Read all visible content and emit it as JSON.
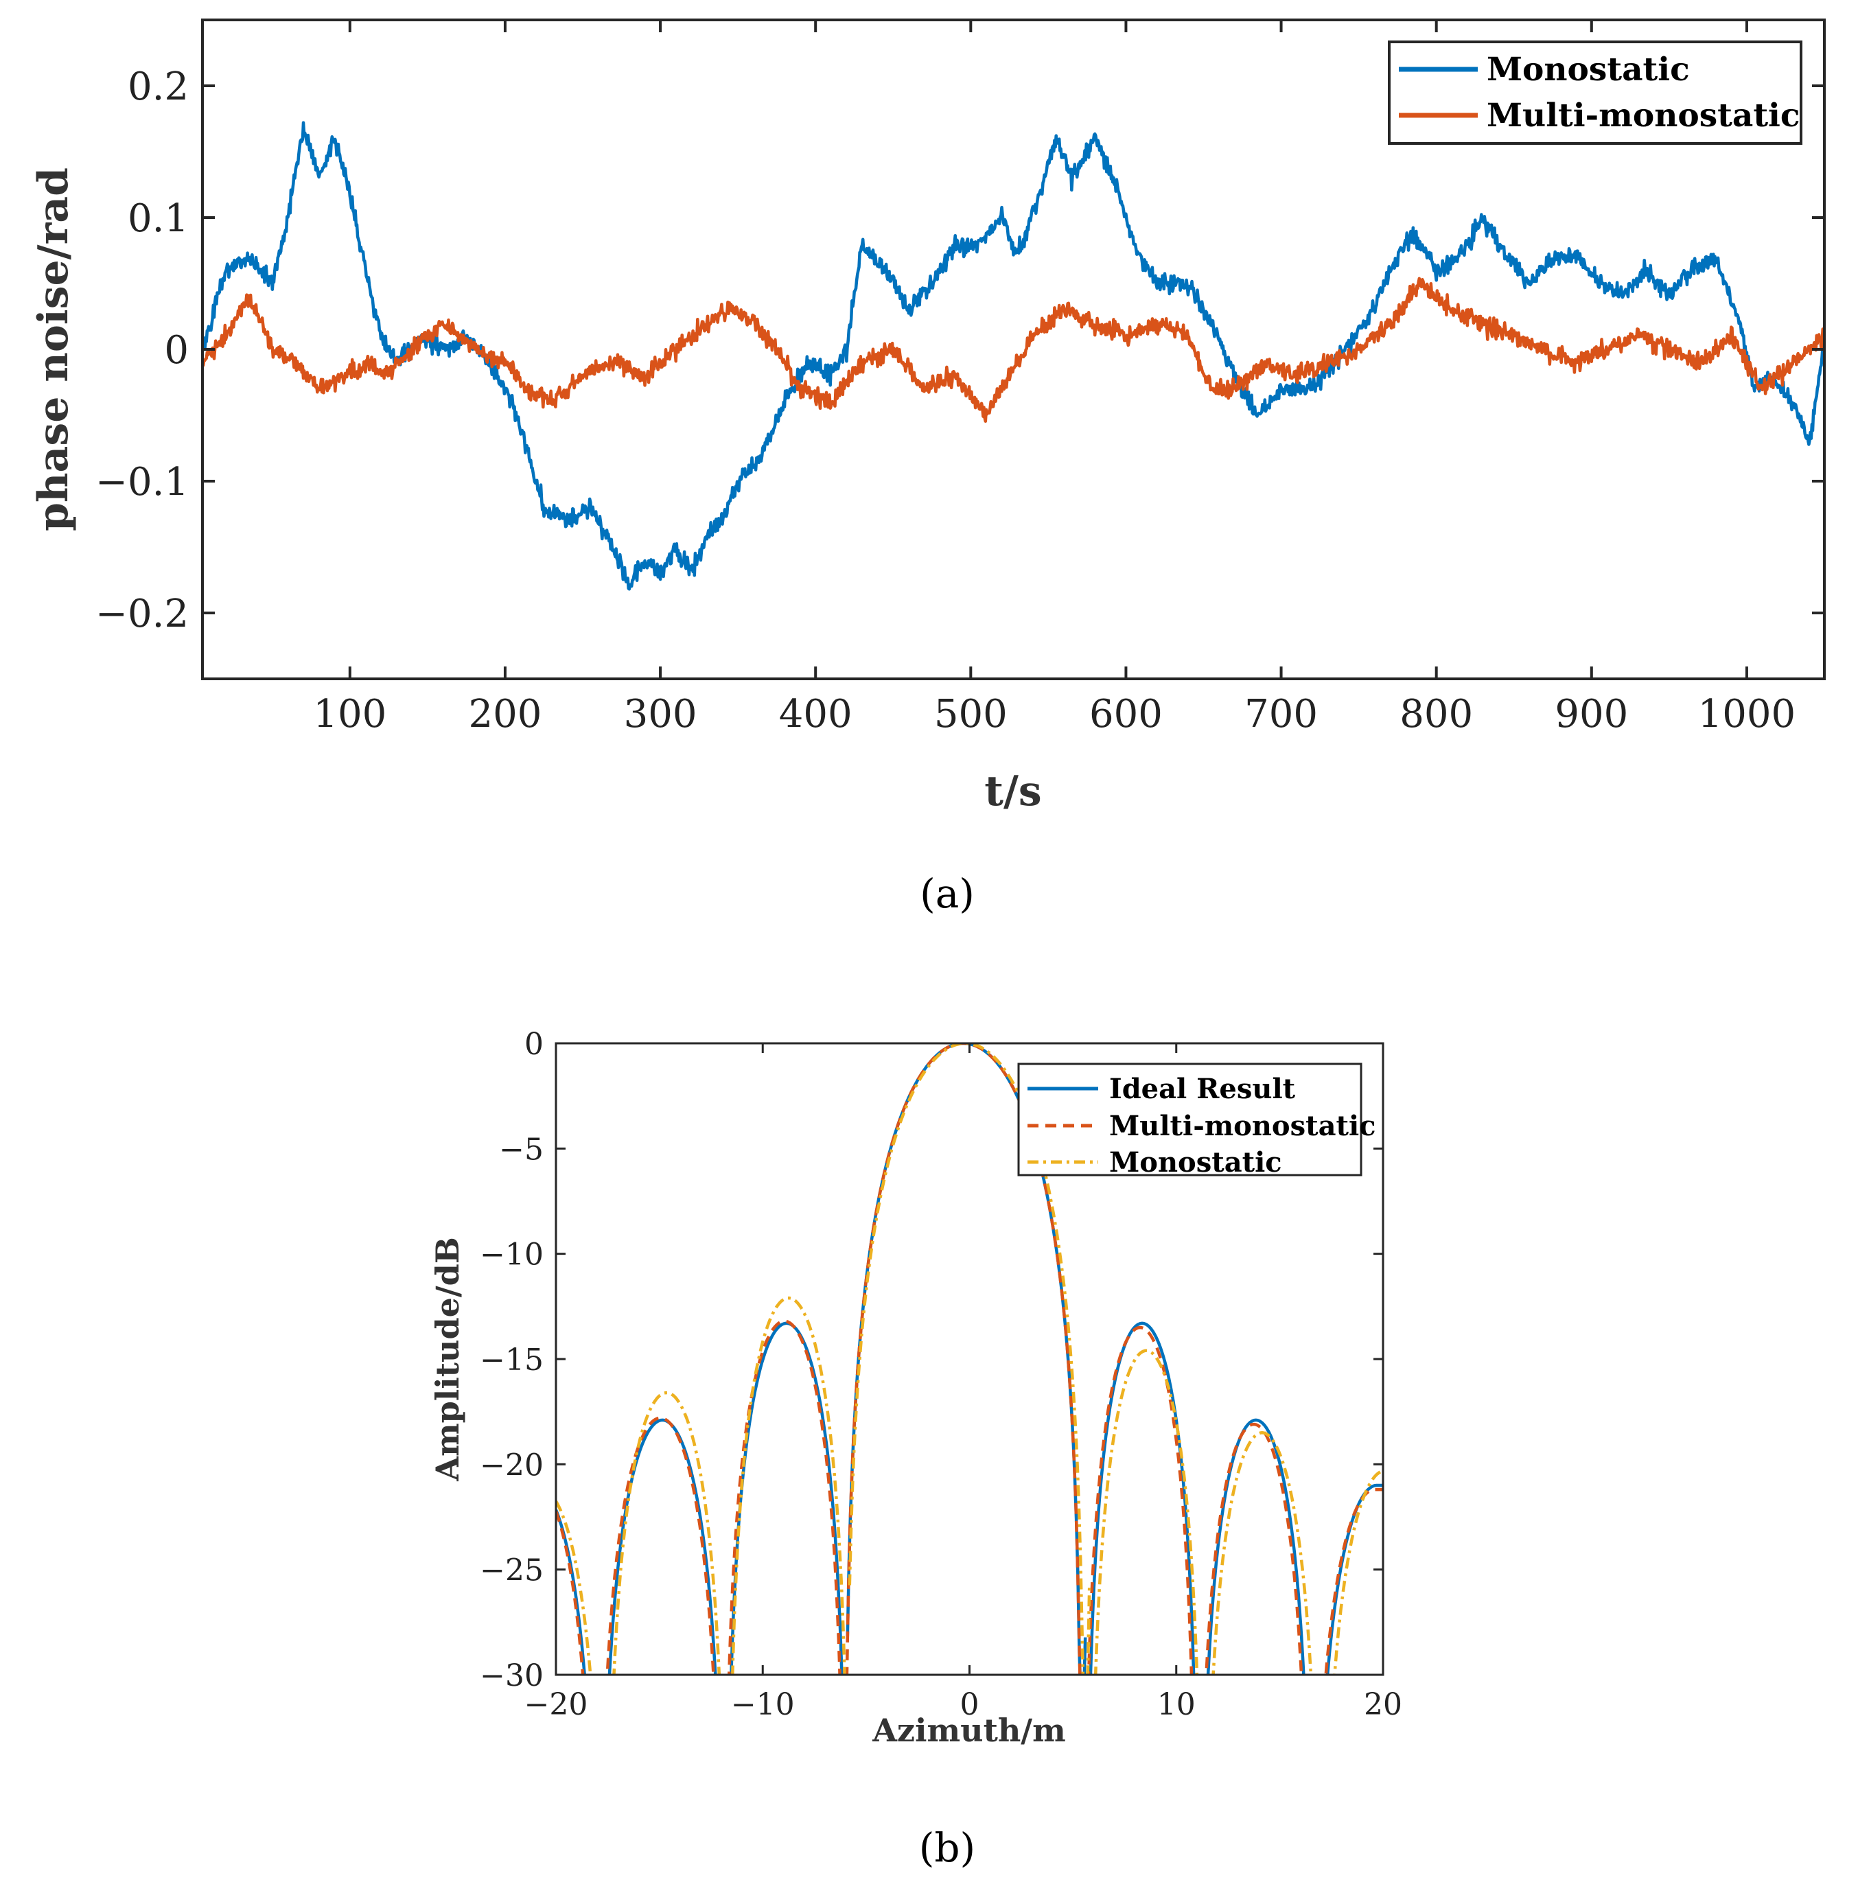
{
  "chart_data": [
    {
      "type": "line",
      "xlabel": "t/s",
      "ylabel": "phase noise/rad",
      "xlim": [
        5,
        1050
      ],
      "ylim": [
        -0.25,
        0.25
      ],
      "xticks": [
        100,
        200,
        300,
        400,
        500,
        600,
        700,
        800,
        900,
        1000
      ],
      "xtick_labels": [
        "100",
        "200",
        "300",
        "400",
        "500",
        "600",
        "700",
        "800",
        "900",
        "1000"
      ],
      "yticks": [
        -0.2,
        -0.1,
        0,
        0.1,
        0.2
      ],
      "ytick_labels": [
        "−0.2",
        "−0.1",
        "0",
        "0.1",
        "0.2"
      ],
      "caption": "(a)",
      "legend_position": "top-right",
      "series": [
        {
          "name": "Monostatic",
          "color": "#0072BD",
          "style": "solid",
          "x": [
            5,
            20,
            35,
            50,
            60,
            70,
            80,
            90,
            100,
            110,
            120,
            130,
            145,
            160,
            175,
            190,
            205,
            215,
            225,
            240,
            255,
            270,
            280,
            290,
            300,
            310,
            320,
            330,
            340,
            350,
            365,
            380,
            395,
            410,
            420,
            430,
            445,
            460,
            475,
            490,
            505,
            520,
            530,
            545,
            555,
            565,
            580,
            595,
            605,
            620,
            640,
            655,
            670,
            685,
            700,
            720,
            740,
            755,
            770,
            785,
            800,
            815,
            830,
            845,
            860,
            875,
            890,
            905,
            920,
            935,
            950,
            965,
            980,
            995,
            1005,
            1015,
            1030,
            1040,
            1050
          ],
          "values": [
            0.0,
            0.06,
            0.07,
            0.05,
            0.1,
            0.17,
            0.13,
            0.16,
            0.12,
            0.06,
            0.01,
            -0.01,
            0.01,
            0.0,
            0.01,
            -0.01,
            -0.04,
            -0.08,
            -0.12,
            -0.13,
            -0.12,
            -0.15,
            -0.18,
            -0.16,
            -0.17,
            -0.15,
            -0.17,
            -0.14,
            -0.13,
            -0.1,
            -0.08,
            -0.04,
            -0.01,
            -0.02,
            0.0,
            0.08,
            0.06,
            0.03,
            0.05,
            0.08,
            0.08,
            0.1,
            0.07,
            0.12,
            0.16,
            0.13,
            0.16,
            0.12,
            0.08,
            0.05,
            0.05,
            0.02,
            -0.02,
            -0.05,
            -0.03,
            -0.03,
            0.0,
            0.02,
            0.06,
            0.09,
            0.06,
            0.07,
            0.1,
            0.07,
            0.05,
            0.07,
            0.07,
            0.05,
            0.04,
            0.06,
            0.04,
            0.06,
            0.07,
            0.02,
            -0.03,
            -0.02,
            -0.04,
            -0.07,
            0.0
          ]
        },
        {
          "name": "Multi-monostatic",
          "color": "#D95319",
          "style": "solid",
          "x": [
            5,
            20,
            35,
            50,
            65,
            80,
            95,
            110,
            125,
            140,
            160,
            180,
            200,
            215,
            230,
            250,
            270,
            290,
            310,
            330,
            345,
            360,
            375,
            390,
            410,
            430,
            450,
            470,
            490,
            510,
            525,
            540,
            560,
            580,
            600,
            620,
            640,
            655,
            670,
            690,
            710,
            730,
            750,
            770,
            790,
            810,
            830,
            850,
            870,
            890,
            910,
            930,
            950,
            970,
            990,
            1010,
            1030,
            1050
          ],
          "values": [
            -0.01,
            0.01,
            0.04,
            0.0,
            -0.01,
            -0.03,
            -0.02,
            -0.01,
            -0.02,
            0.0,
            0.02,
            0.0,
            -0.01,
            -0.03,
            -0.04,
            -0.02,
            -0.01,
            -0.02,
            0.0,
            0.02,
            0.03,
            0.02,
            0.0,
            -0.03,
            -0.04,
            -0.01,
            0.0,
            -0.03,
            -0.02,
            -0.05,
            -0.02,
            0.01,
            0.03,
            0.02,
            0.01,
            0.02,
            0.01,
            -0.03,
            -0.03,
            -0.01,
            -0.02,
            -0.01,
            0.0,
            0.02,
            0.05,
            0.03,
            0.02,
            0.01,
            0.0,
            -0.01,
            0.0,
            0.01,
            0.0,
            -0.01,
            0.01,
            -0.03,
            -0.01,
            0.01
          ]
        }
      ]
    },
    {
      "type": "line",
      "xlabel": "Azimuth/m",
      "ylabel": "Amplitude/dB",
      "xlim": [
        -20,
        20
      ],
      "ylim": [
        -30,
        0
      ],
      "xticks": [
        -20,
        -10,
        0,
        10,
        20
      ],
      "xtick_labels": [
        "−20",
        "−10",
        "0",
        "10",
        "20"
      ],
      "yticks": [
        0,
        -5,
        -10,
        -15,
        -20,
        -25,
        -30
      ],
      "ytick_labels": [
        "0",
        "−5",
        "−10",
        "−15",
        "−20",
        "−25",
        "−30"
      ],
      "caption": "(b)",
      "legend_position": "top-right",
      "series": [
        {
          "name": "Ideal Result",
          "color": "#0072BD",
          "style": "solid",
          "mainlobe_center": -0.3,
          "nulls": [
            -17.9,
            -11.8,
            -5.9,
            5.6,
            11.1,
            16.6
          ],
          "lobe_peaks": [
            -21.0,
            -17.9,
            -13.3,
            0,
            -13.3,
            -17.9,
            -21.0
          ],
          "left_edge_value": -20.9,
          "right_edge_value": -22.0
        },
        {
          "name": "Multi-monostatic",
          "color": "#D95319",
          "style": "dashed",
          "mainlobe_center": -0.3,
          "nulls": [
            -18.0,
            -11.9,
            -6.0,
            5.5,
            11.0,
            16.5
          ],
          "lobe_peaks": [
            -20.8,
            -17.8,
            -13.2,
            0,
            -13.5,
            -18.1,
            -21.2
          ],
          "left_edge_value": -20.7,
          "right_edge_value": -22.2
        },
        {
          "name": "Monostatic",
          "color": "#EDB120",
          "style": "dashdot",
          "mainlobe_center": -0.2,
          "nulls": [
            -17.6,
            -11.7,
            -5.8,
            5.8,
            11.3,
            17.0
          ],
          "lobe_peaks": [
            -21.2,
            -16.6,
            -12.1,
            0,
            -14.6,
            -18.5,
            -20.3
          ],
          "left_edge_value": -21.4,
          "right_edge_value": -21.4
        }
      ]
    }
  ]
}
